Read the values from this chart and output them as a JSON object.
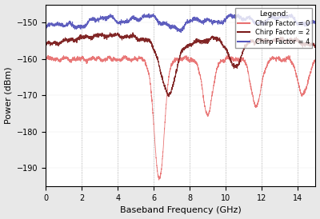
{
  "xlabel": "Baseband Frequency (GHz)",
  "ylabel": "Power (dBm)",
  "xlim": [
    0,
    15
  ],
  "ylim": [
    -195,
    -145
  ],
  "yticks": [
    -190,
    -180,
    -170,
    -160,
    -150
  ],
  "xticks": [
    0,
    2,
    4,
    6,
    8,
    10,
    12,
    14
  ],
  "legend_title": "Legend:",
  "legend_entries": [
    "Chirp Factor = 0",
    "Chirp Factor = 2",
    "Chirp Factor = 4"
  ],
  "colors": {
    "chirp0": "#e87070",
    "chirp2": "#7a1a1a",
    "chirp4": "#5555bb"
  },
  "bg_color": "#e8e8e8",
  "plot_bg": "#ffffff"
}
